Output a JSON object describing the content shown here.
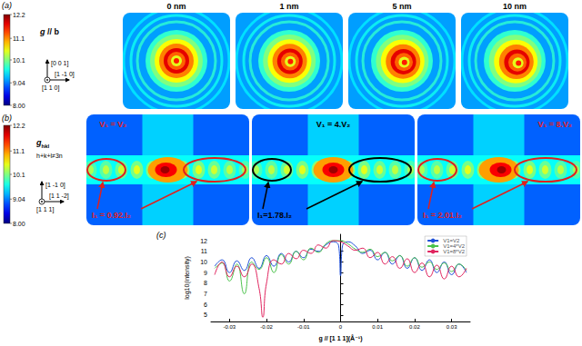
{
  "panel_a": {
    "label": "(a)",
    "colorbar": {
      "range": [
        8.0,
        12.2
      ],
      "ticks": [
        {
          "value": 8,
          "label": "8.00"
        },
        9.04,
        10.1,
        11.1,
        12.2
      ]
    },
    "orientation": {
      "title": {
        "symbol": "g",
        "text": " // b"
      },
      "up": "[0 0 1]",
      "out": "[1 1 0]",
      "right": "[1 -1 0]"
    },
    "columns": [
      "0 nm",
      "1 nm",
      "5 nm",
      "10 nm"
    ]
  },
  "panel_b": {
    "label": "(b)",
    "colorbar": {
      "range": [
        8.0,
        12.2
      ],
      "ticks": [
        {
          "value": 8,
          "label": "8.00"
        },
        9.04,
        10.1,
        11.1,
        12.2
      ]
    },
    "orientation": {
      "title": {
        "symbol": "g",
        "subscript": "hkl"
      },
      "condition": "h+k+l≠3n",
      "up": "[1 -1 0]",
      "out": "[1 1 1]",
      "right": "[1 1 -2]"
    },
    "frames": [
      {
        "ratio": "V₁ = V₂",
        "intensity": "I₁ = 0.92.I₂",
        "color": "#e0201e"
      },
      {
        "ratio": "V₁ = 4.V₂",
        "intensity": "I₁=1.78.I₂",
        "color": "#000000"
      },
      {
        "ratio": "V₁ = 8.V₂",
        "intensity": "I₁ = 2.01.I₂",
        "color": "#e0201e"
      }
    ]
  },
  "chart_data": {
    "type": "line",
    "annotations": [
      "(c)"
    ],
    "xlabel": "g // [1 1 1](Å⁻¹)",
    "ylabel": "log10(intensity)",
    "xlim": [
      -0.035,
      0.035
    ],
    "xticks": [
      -0.03,
      -0.02,
      -0.01,
      0,
      0.01,
      0.02,
      0.03
    ],
    "ylim": [
      4.4,
      12.6
    ],
    "yticks": [
      5,
      6,
      7,
      8,
      9,
      10,
      11,
      12
    ],
    "grid": false,
    "legend": "upper right",
    "series": [
      {
        "name": "V1=V2",
        "color": "#2050d8",
        "x": [
          -0.034,
          -0.032,
          -0.03,
          -0.028,
          -0.026,
          -0.024,
          -0.022,
          -0.02,
          -0.018,
          -0.016,
          -0.014,
          -0.012,
          -0.01,
          -0.008,
          -0.006,
          -0.004,
          -0.002,
          -0.0005,
          0,
          0.0005,
          0.002,
          0.004,
          0.006,
          0.008,
          0.01,
          0.012,
          0.014,
          0.016,
          0.018,
          0.02,
          0.022,
          0.024,
          0.026,
          0.028,
          0.03,
          0.032,
          0.034
        ],
        "values": [
          9.6,
          10.2,
          9.0,
          10.1,
          9.2,
          10.4,
          9.4,
          10.6,
          9.6,
          10.8,
          10.0,
          11.0,
          10.4,
          11.2,
          11.0,
          11.6,
          11.9,
          11.5,
          8.7,
          11.5,
          11.9,
          11.5,
          10.8,
          11.1,
          10.2,
          10.9,
          9.8,
          10.6,
          9.4,
          10.4,
          9.2,
          10.2,
          9.0,
          10.0,
          8.8,
          9.8,
          9.0
        ]
      },
      {
        "name": "V1=4*V2",
        "color": "#4cc24c",
        "x": [
          -0.034,
          -0.032,
          -0.03,
          -0.028,
          -0.026,
          -0.024,
          -0.022,
          -0.02,
          -0.018,
          -0.016,
          -0.014,
          -0.012,
          -0.01,
          -0.008,
          -0.006,
          -0.004,
          -0.002,
          0,
          0.002,
          0.004,
          0.006,
          0.008,
          0.01,
          0.012,
          0.014,
          0.016,
          0.018,
          0.02,
          0.022,
          0.024,
          0.026,
          0.028,
          0.03,
          0.032,
          0.034
        ],
        "values": [
          9.4,
          9.9,
          8.2,
          9.8,
          7.0,
          10.0,
          9.3,
          10.4,
          9.0,
          10.7,
          9.8,
          11.0,
          10.2,
          11.3,
          10.9,
          11.7,
          12.0,
          12.0,
          11.7,
          11.2,
          10.9,
          11.2,
          10.5,
          10.9,
          10.1,
          10.6,
          9.6,
          10.4,
          9.5,
          10.0,
          9.3,
          9.9,
          9.1,
          9.8,
          9.2
        ]
      },
      {
        "name": "V1=8*V2",
        "color": "#e0245e",
        "x": [
          -0.034,
          -0.032,
          -0.03,
          -0.028,
          -0.026,
          -0.024,
          -0.022,
          -0.021,
          -0.02,
          -0.018,
          -0.016,
          -0.014,
          -0.012,
          -0.01,
          -0.008,
          -0.006,
          -0.004,
          -0.002,
          0,
          0.002,
          0.004,
          0.006,
          0.008,
          0.01,
          0.012,
          0.014,
          0.016,
          0.018,
          0.02,
          0.022,
          0.024,
          0.026,
          0.028,
          0.03,
          0.032,
          0.034
        ],
        "values": [
          8.8,
          10.0,
          8.6,
          9.6,
          8.6,
          9.8,
          7.5,
          4.8,
          8.0,
          10.2,
          9.8,
          10.8,
          10.3,
          11.1,
          10.8,
          11.6,
          11.3,
          12.0,
          11.9,
          11.5,
          11.1,
          11.3,
          10.4,
          10.9,
          9.8,
          10.5,
          9.4,
          10.3,
          9.0,
          9.9,
          8.6,
          9.7,
          8.4,
          9.6,
          8.6,
          9.4
        ]
      }
    ]
  }
}
